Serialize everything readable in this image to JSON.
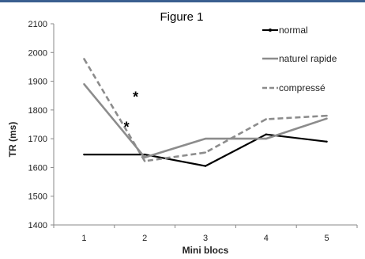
{
  "chart_data": {
    "type": "line",
    "title": "Figure 1",
    "xlabel": "Mini blocs",
    "ylabel": "TR (ms)",
    "categories": [
      "1",
      "2",
      "3",
      "4",
      "5"
    ],
    "ylim": [
      1400,
      2100
    ],
    "yticks": [
      "1400",
      "1500",
      "1600",
      "1700",
      "1800",
      "1900",
      "2000",
      "2100"
    ],
    "grid": false,
    "legend_position": "top-right",
    "series": [
      {
        "name": "normal",
        "values": [
          1645,
          1645,
          1605,
          1715,
          1690
        ],
        "color": "#000000",
        "style": "solid"
      },
      {
        "name": "naturel rapide",
        "values": [
          1890,
          1635,
          1700,
          1700,
          1770
        ],
        "color": "#8c8c8c",
        "style": "solid"
      },
      {
        "name": "compressé",
        "values": [
          1978,
          1622,
          1652,
          1768,
          1780
        ],
        "color": "#8c8c8c",
        "style": "dashed"
      }
    ],
    "annotations": [
      {
        "text": "*",
        "x": 1.85,
        "y": 1845
      },
      {
        "text": "*",
        "x": 1.7,
        "y": 1740
      }
    ]
  }
}
